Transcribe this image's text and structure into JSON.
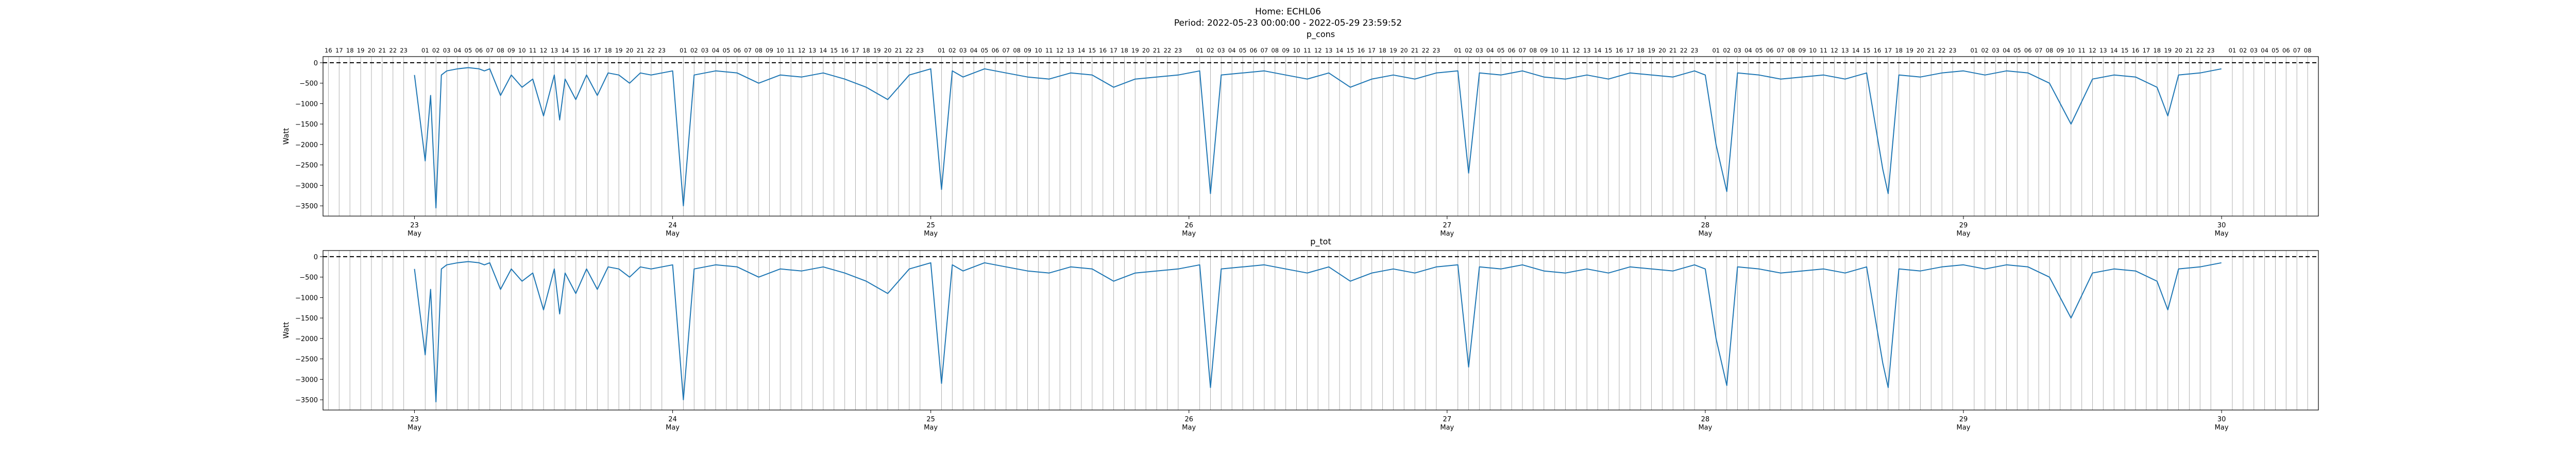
{
  "figure": {
    "title_line1": "Home: ECHL06",
    "title_line2": "Period: 2022-05-23 00:00:00 - 2022-05-29 23:59:52"
  },
  "colors": {
    "series": "#1f77b4",
    "dashed": "#000000",
    "hour_grid": "#b0b0b0",
    "axis": "#000000"
  },
  "chart_data": [
    {
      "type": "line",
      "title": "p_cons",
      "ylabel": "Watt",
      "xlabel": "",
      "ylim": [
        -3750,
        150
      ],
      "xlim": [
        "2022-05-22 15:30",
        "2022-05-30 09:00"
      ],
      "yticks": [
        0,
        -500,
        -1000,
        -1500,
        -2000,
        -2500,
        -3000,
        -3500
      ],
      "top_hour_ticks": [
        "16",
        "17",
        "18",
        "19",
        "20",
        "21",
        "22",
        "23",
        "01",
        "02",
        "03",
        "04",
        "05",
        "06",
        "07",
        "08",
        "09",
        "10",
        "11",
        "12",
        "13",
        "14",
        "15",
        "16",
        "17",
        "18",
        "19",
        "20",
        "21",
        "22",
        "23",
        "01",
        "02",
        "03",
        "04",
        "05",
        "06",
        "07",
        "08",
        "09",
        "10",
        "11",
        "12",
        "13",
        "14",
        "15",
        "16",
        "17",
        "18",
        "19",
        "20",
        "21",
        "22",
        "23",
        "01",
        "02",
        "03",
        "04",
        "05",
        "06",
        "07",
        "08",
        "09",
        "10",
        "11",
        "12",
        "13",
        "14",
        "15",
        "16",
        "17",
        "18",
        "19",
        "20",
        "21",
        "22",
        "23",
        "01",
        "02",
        "03",
        "04",
        "05",
        "06",
        "07",
        "08",
        "09",
        "10",
        "11",
        "12",
        "13",
        "14",
        "15",
        "16",
        "17",
        "18",
        "19",
        "20",
        "21",
        "22",
        "23",
        "01",
        "02",
        "03",
        "04",
        "05",
        "06",
        "07",
        "08",
        "09",
        "10",
        "11",
        "12",
        "13",
        "14",
        "15",
        "16",
        "17",
        "18",
        "19",
        "20",
        "21",
        "22",
        "23",
        "01",
        "02",
        "03",
        "04",
        "05",
        "06",
        "07",
        "08",
        "09",
        "10",
        "11",
        "12",
        "13",
        "14",
        "15",
        "16",
        "17",
        "18",
        "19",
        "20",
        "21",
        "22",
        "23",
        "01",
        "02",
        "03",
        "04",
        "05",
        "06",
        "07",
        "08",
        "09",
        "10",
        "11",
        "12",
        "13",
        "14",
        "15",
        "16",
        "17",
        "18",
        "19",
        "20",
        "21",
        "22",
        "23",
        "01",
        "02",
        "03",
        "04",
        "05",
        "06",
        "07",
        "08"
      ],
      "day_ticks": [
        {
          "day": "23",
          "month": "May"
        },
        {
          "day": "24",
          "month": "May"
        },
        {
          "day": "25",
          "month": "May"
        },
        {
          "day": "26",
          "month": "May"
        },
        {
          "day": "27",
          "month": "May"
        },
        {
          "day": "28",
          "month": "May"
        },
        {
          "day": "29",
          "month": "May"
        },
        {
          "day": "30",
          "month": "May"
        }
      ],
      "dashed_line_y": 0,
      "series": [
        {
          "x": [
            "2022-05-23 00:00",
            "2022-05-23 01:00",
            "2022-05-23 01:30",
            "2022-05-23 02:00",
            "2022-05-23 02:30",
            "2022-05-23 03:00",
            "2022-05-23 04:00",
            "2022-05-23 05:00",
            "2022-05-23 06:00",
            "2022-05-23 06:30",
            "2022-05-23 07:00",
            "2022-05-23 08:00",
            "2022-05-23 09:00",
            "2022-05-23 10:00",
            "2022-05-23 11:00",
            "2022-05-23 12:00",
            "2022-05-23 13:00",
            "2022-05-23 13:30",
            "2022-05-23 14:00",
            "2022-05-23 15:00",
            "2022-05-23 16:00",
            "2022-05-23 17:00",
            "2022-05-23 18:00",
            "2022-05-23 19:00",
            "2022-05-23 20:00",
            "2022-05-23 21:00",
            "2022-05-23 22:00",
            "2022-05-24 00:00",
            "2022-05-24 01:00",
            "2022-05-24 02:00",
            "2022-05-24 03:00",
            "2022-05-24 04:00",
            "2022-05-24 06:00",
            "2022-05-24 08:00",
            "2022-05-24 10:00",
            "2022-05-24 12:00",
            "2022-05-24 14:00",
            "2022-05-24 16:00",
            "2022-05-24 18:00",
            "2022-05-24 20:00",
            "2022-05-24 22:00",
            "2022-05-25 00:00",
            "2022-05-25 01:00",
            "2022-05-25 02:00",
            "2022-05-25 03:00",
            "2022-05-25 05:00",
            "2022-05-25 07:00",
            "2022-05-25 09:00",
            "2022-05-25 11:00",
            "2022-05-25 13:00",
            "2022-05-25 15:00",
            "2022-05-25 17:00",
            "2022-05-25 19:00",
            "2022-05-25 21:00",
            "2022-05-25 23:00",
            "2022-05-26 01:00",
            "2022-05-26 02:00",
            "2022-05-26 03:00",
            "2022-05-26 05:00",
            "2022-05-26 07:00",
            "2022-05-26 09:00",
            "2022-05-26 11:00",
            "2022-05-26 13:00",
            "2022-05-26 15:00",
            "2022-05-26 17:00",
            "2022-05-26 19:00",
            "2022-05-26 21:00",
            "2022-05-26 23:00",
            "2022-05-27 01:00",
            "2022-05-27 02:00",
            "2022-05-27 03:00",
            "2022-05-27 05:00",
            "2022-05-27 07:00",
            "2022-05-27 09:00",
            "2022-05-27 11:00",
            "2022-05-27 13:00",
            "2022-05-27 15:00",
            "2022-05-27 17:00",
            "2022-05-27 19:00",
            "2022-05-27 21:00",
            "2022-05-27 23:00",
            "2022-05-28 00:00",
            "2022-05-28 01:00",
            "2022-05-28 02:00",
            "2022-05-28 03:00",
            "2022-05-28 05:00",
            "2022-05-28 07:00",
            "2022-05-28 09:00",
            "2022-05-28 11:00",
            "2022-05-28 13:00",
            "2022-05-28 15:00",
            "2022-05-28 16:30",
            "2022-05-28 17:00",
            "2022-05-28 18:00",
            "2022-05-28 20:00",
            "2022-05-28 22:00",
            "2022-05-29 00:00",
            "2022-05-29 02:00",
            "2022-05-29 04:00",
            "2022-05-29 06:00",
            "2022-05-29 08:00",
            "2022-05-29 09:00",
            "2022-05-29 10:00",
            "2022-05-29 12:00",
            "2022-05-29 14:00",
            "2022-05-29 16:00",
            "2022-05-29 18:00",
            "2022-05-29 19:00",
            "2022-05-29 20:00",
            "2022-05-29 22:00",
            "2022-05-29 23:59"
          ],
          "y": [
            -300,
            -2400,
            -800,
            -3550,
            -300,
            -200,
            -150,
            -120,
            -150,
            -200,
            -150,
            -800,
            -300,
            -600,
            -400,
            -1300,
            -300,
            -1400,
            -400,
            -900,
            -300,
            -800,
            -250,
            -300,
            -500,
            -250,
            -300,
            -200,
            -3500,
            -300,
            -250,
            -200,
            -250,
            -500,
            -300,
            -350,
            -250,
            -400,
            -600,
            -900,
            -300,
            -150,
            -3100,
            -200,
            -350,
            -150,
            -250,
            -350,
            -400,
            -250,
            -300,
            -600,
            -400,
            -350,
            -300,
            -200,
            -3200,
            -300,
            -250,
            -200,
            -300,
            -400,
            -250,
            -600,
            -400,
            -300,
            -400,
            -250,
            -200,
            -2700,
            -250,
            -300,
            -200,
            -350,
            -400,
            -300,
            -400,
            -250,
            -300,
            -350,
            -200,
            -300,
            -2000,
            -3150,
            -250,
            -300,
            -400,
            -350,
            -300,
            -400,
            -250,
            -2600,
            -3200,
            -300,
            -350,
            -250,
            -200,
            -300,
            -200,
            -250,
            -500,
            -1000,
            -1500,
            -400,
            -300,
            -350,
            -600,
            -1300,
            -300,
            -250,
            -150
          ]
        }
      ]
    },
    {
      "type": "line",
      "title": "p_tot",
      "ylabel": "Watt",
      "xlabel": "",
      "ylim": [
        -3750,
        150
      ],
      "xlim": [
        "2022-05-22 15:30",
        "2022-05-30 09:00"
      ],
      "yticks": [
        0,
        -500,
        -1000,
        -1500,
        -2000,
        -2500,
        -3000,
        -3500
      ],
      "day_ticks": [
        {
          "day": "23",
          "month": "May"
        },
        {
          "day": "24",
          "month": "May"
        },
        {
          "day": "25",
          "month": "May"
        },
        {
          "day": "26",
          "month": "May"
        },
        {
          "day": "27",
          "month": "May"
        },
        {
          "day": "28",
          "month": "May"
        },
        {
          "day": "29",
          "month": "May"
        },
        {
          "day": "30",
          "month": "May"
        }
      ],
      "dashed_line_y": 0,
      "series": [
        {
          "x": [
            "2022-05-23 00:00",
            "2022-05-23 01:00",
            "2022-05-23 01:30",
            "2022-05-23 02:00",
            "2022-05-23 02:30",
            "2022-05-23 03:00",
            "2022-05-23 04:00",
            "2022-05-23 05:00",
            "2022-05-23 06:00",
            "2022-05-23 06:30",
            "2022-05-23 07:00",
            "2022-05-23 08:00",
            "2022-05-23 09:00",
            "2022-05-23 10:00",
            "2022-05-23 11:00",
            "2022-05-23 12:00",
            "2022-05-23 13:00",
            "2022-05-23 13:30",
            "2022-05-23 14:00",
            "2022-05-23 15:00",
            "2022-05-23 16:00",
            "2022-05-23 17:00",
            "2022-05-23 18:00",
            "2022-05-23 19:00",
            "2022-05-23 20:00",
            "2022-05-23 21:00",
            "2022-05-23 22:00",
            "2022-05-24 00:00",
            "2022-05-24 01:00",
            "2022-05-24 02:00",
            "2022-05-24 03:00",
            "2022-05-24 04:00",
            "2022-05-24 06:00",
            "2022-05-24 08:00",
            "2022-05-24 10:00",
            "2022-05-24 12:00",
            "2022-05-24 14:00",
            "2022-05-24 16:00",
            "2022-05-24 18:00",
            "2022-05-24 20:00",
            "2022-05-24 22:00",
            "2022-05-25 00:00",
            "2022-05-25 01:00",
            "2022-05-25 02:00",
            "2022-05-25 03:00",
            "2022-05-25 05:00",
            "2022-05-25 07:00",
            "2022-05-25 09:00",
            "2022-05-25 11:00",
            "2022-05-25 13:00",
            "2022-05-25 15:00",
            "2022-05-25 17:00",
            "2022-05-25 19:00",
            "2022-05-25 21:00",
            "2022-05-25 23:00",
            "2022-05-26 01:00",
            "2022-05-26 02:00",
            "2022-05-26 03:00",
            "2022-05-26 05:00",
            "2022-05-26 07:00",
            "2022-05-26 09:00",
            "2022-05-26 11:00",
            "2022-05-26 13:00",
            "2022-05-26 15:00",
            "2022-05-26 17:00",
            "2022-05-26 19:00",
            "2022-05-26 21:00",
            "2022-05-26 23:00",
            "2022-05-27 01:00",
            "2022-05-27 02:00",
            "2022-05-27 03:00",
            "2022-05-27 05:00",
            "2022-05-27 07:00",
            "2022-05-27 09:00",
            "2022-05-27 11:00",
            "2022-05-27 13:00",
            "2022-05-27 15:00",
            "2022-05-27 17:00",
            "2022-05-27 19:00",
            "2022-05-27 21:00",
            "2022-05-27 23:00",
            "2022-05-28 00:00",
            "2022-05-28 01:00",
            "2022-05-28 02:00",
            "2022-05-28 03:00",
            "2022-05-28 05:00",
            "2022-05-28 07:00",
            "2022-05-28 09:00",
            "2022-05-28 11:00",
            "2022-05-28 13:00",
            "2022-05-28 15:00",
            "2022-05-28 16:30",
            "2022-05-28 17:00",
            "2022-05-28 18:00",
            "2022-05-28 20:00",
            "2022-05-28 22:00",
            "2022-05-29 00:00",
            "2022-05-29 02:00",
            "2022-05-29 04:00",
            "2022-05-29 06:00",
            "2022-05-29 08:00",
            "2022-05-29 09:00",
            "2022-05-29 10:00",
            "2022-05-29 12:00",
            "2022-05-29 14:00",
            "2022-05-29 16:00",
            "2022-05-29 18:00",
            "2022-05-29 19:00",
            "2022-05-29 20:00",
            "2022-05-29 22:00",
            "2022-05-29 23:59"
          ],
          "y": [
            -300,
            -2400,
            -800,
            -3550,
            -300,
            -200,
            -150,
            -120,
            -150,
            -200,
            -150,
            -800,
            -300,
            -600,
            -400,
            -1300,
            -300,
            -1400,
            -400,
            -900,
            -300,
            -800,
            -250,
            -300,
            -500,
            -250,
            -300,
            -200,
            -3500,
            -300,
            -250,
            -200,
            -250,
            -500,
            -300,
            -350,
            -250,
            -400,
            -600,
            -900,
            -300,
            -150,
            -3100,
            -200,
            -350,
            -150,
            -250,
            -350,
            -400,
            -250,
            -300,
            -600,
            -400,
            -350,
            -300,
            -200,
            -3200,
            -300,
            -250,
            -200,
            -300,
            -400,
            -250,
            -600,
            -400,
            -300,
            -400,
            -250,
            -200,
            -2700,
            -250,
            -300,
            -200,
            -350,
            -400,
            -300,
            -400,
            -250,
            -300,
            -350,
            -200,
            -300,
            -2000,
            -3150,
            -250,
            -300,
            -400,
            -350,
            -300,
            -400,
            -250,
            -2600,
            -3200,
            -300,
            -350,
            -250,
            -200,
            -300,
            -200,
            -250,
            -500,
            -1000,
            -1500,
            -400,
            -300,
            -350,
            -600,
            -1300,
            -300,
            -250,
            -150
          ]
        }
      ]
    }
  ]
}
